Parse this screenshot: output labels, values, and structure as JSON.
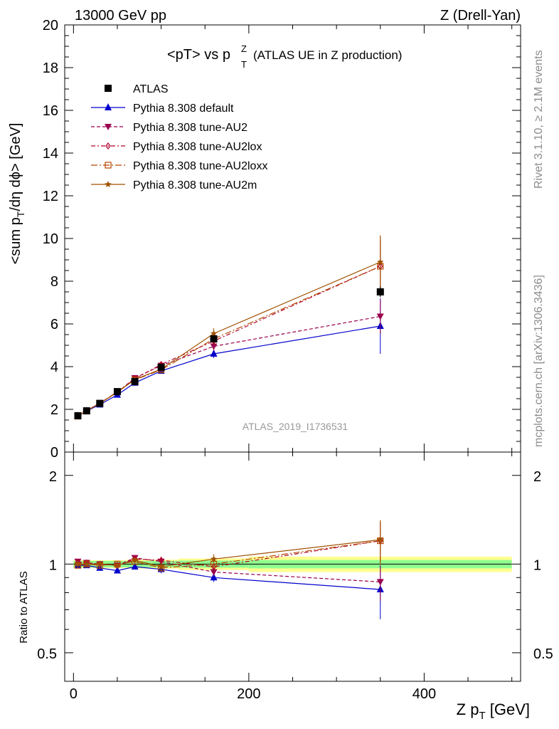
{
  "header": {
    "left": "13000 GeV pp",
    "right": "Z (Drell-Yan)"
  },
  "title": {
    "main": "<pT> vs p",
    "sup": "Z",
    "sub": "T",
    "note": "(ATLAS UE in Z production)"
  },
  "side_labels": {
    "rivet": "Rivet 3.1.10, ≥ 2.1M events",
    "mcplots": "mcplots.cern.ch [arXiv:1306.3436]"
  },
  "analysis_label": "ATLAS_2019_I1736531",
  "colors": {
    "data": "#000000",
    "default": "#0000cc",
    "AU2": "#99004d",
    "AU2lox": "#b3002b",
    "AU2loxx": "#b34700",
    "AU2m": "#a05000",
    "band_inner": "#90ff90",
    "band_outer": "#ffff90"
  },
  "chart_data": [
    {
      "type": "line",
      "panel": "main",
      "xlabel": "Z p_T [GeV]",
      "ylabel": "<sum p_T/dη dϕ> [GeV]",
      "xlim": [
        -10,
        510
      ],
      "ylim": [
        0,
        20
      ],
      "yticks": [
        0,
        2,
        4,
        6,
        8,
        10,
        12,
        14,
        16,
        18,
        20
      ],
      "x": [
        5,
        15,
        30,
        50,
        70,
        100,
        160,
        350
      ],
      "legend_position": "top-left",
      "series": [
        {
          "name": "ATLAS",
          "key": "data",
          "marker": "square-filled",
          "dash": "none",
          "values": [
            1.7,
            1.93,
            2.28,
            2.83,
            3.3,
            3.97,
            5.3,
            7.5
          ],
          "errors": [
            0.05,
            0.05,
            0.06,
            0.07,
            0.09,
            0.1,
            0.15,
            0.25
          ]
        },
        {
          "name": "Pythia 8.308 default",
          "key": "default",
          "marker": "triangle-up",
          "dash": "solid",
          "values": [
            1.68,
            1.92,
            2.22,
            2.68,
            3.24,
            3.8,
            4.6,
            5.9
          ],
          "errors": [
            0.03,
            0.03,
            0.05,
            0.06,
            0.08,
            0.11,
            0.2,
            1.3
          ]
        },
        {
          "name": "Pythia 8.308 tune-AU2",
          "key": "AU2",
          "marker": "triangle-down",
          "dash": "dashed",
          "values": [
            1.73,
            1.95,
            2.28,
            2.8,
            3.47,
            4.05,
            4.95,
            6.35
          ],
          "errors": [
            0.03,
            0.03,
            0.05,
            0.06,
            0.08,
            0.11,
            0.2,
            0.8
          ]
        },
        {
          "name": "Pythia 8.308 tune-AU2lox",
          "key": "AU2lox",
          "marker": "diamond-open",
          "dash": "dashdot",
          "values": [
            1.71,
            1.95,
            2.29,
            2.81,
            3.43,
            4.1,
            5.2,
            8.7
          ],
          "errors": [
            0.03,
            0.03,
            0.05,
            0.06,
            0.08,
            0.11,
            0.2,
            1.2
          ]
        },
        {
          "name": "Pythia 8.308 tune-AU2loxx",
          "key": "AU2loxx",
          "marker": "square-open",
          "dash": "longdashdot",
          "values": [
            1.68,
            1.93,
            2.27,
            2.83,
            3.38,
            3.85,
            5.3,
            8.7
          ],
          "errors": [
            0.03,
            0.03,
            0.05,
            0.06,
            0.08,
            0.11,
            0.2,
            1.4
          ]
        },
        {
          "name": "Pythia 8.308 tune-AU2m",
          "key": "AU2m",
          "marker": "star",
          "dash": "solid",
          "values": [
            1.69,
            1.94,
            2.28,
            2.8,
            3.4,
            3.88,
            5.55,
            8.9
          ],
          "errors": [
            0.03,
            0.03,
            0.05,
            0.06,
            0.08,
            0.11,
            0.25,
            1.25
          ]
        }
      ]
    },
    {
      "type": "line",
      "panel": "ratio",
      "xlabel": "Z p_T [GeV]",
      "ylabel": "Ratio to ATLAS",
      "xlim": [
        -10,
        510
      ],
      "ylim": [
        0.4,
        2.4
      ],
      "scale": "log",
      "yticks": [
        0.5,
        1,
        2
      ],
      "xticks": [
        0,
        200,
        400
      ],
      "x": [
        5,
        15,
        30,
        50,
        70,
        100,
        160,
        350
      ],
      "band": {
        "x": [
          0,
          10,
          20,
          40,
          60,
          80,
          120,
          200,
          500
        ],
        "inner": [
          0.025,
          0.025,
          0.025,
          0.025,
          0.025,
          0.025,
          0.028,
          0.033
        ],
        "outer": [
          0.03,
          0.03,
          0.03,
          0.03,
          0.035,
          0.035,
          0.045,
          0.06
        ]
      },
      "series": [
        {
          "name": "Pythia 8.308 default",
          "key": "default",
          "values": [
            0.99,
            0.99,
            0.97,
            0.95,
            0.98,
            0.96,
            0.9,
            0.82
          ],
          "errors": [
            0.02,
            0.02,
            0.02,
            0.02,
            0.02,
            0.03,
            0.03,
            0.17
          ]
        },
        {
          "name": "Pythia 8.308 tune-AU2",
          "key": "AU2",
          "values": [
            1.02,
            1.01,
            1.0,
            0.99,
            1.05,
            1.02,
            0.94,
            0.87
          ],
          "errors": [
            0.02,
            0.02,
            0.02,
            0.02,
            0.02,
            0.03,
            0.03,
            0.12
          ]
        },
        {
          "name": "Pythia 8.308 tune-AU2lox",
          "key": "AU2lox",
          "values": [
            1.01,
            1.01,
            1.0,
            0.99,
            1.04,
            1.03,
            0.98,
            1.2
          ],
          "errors": [
            0.02,
            0.02,
            0.02,
            0.02,
            0.02,
            0.03,
            0.03,
            0.18
          ]
        },
        {
          "name": "Pythia 8.308 tune-AU2loxx",
          "key": "AU2loxx",
          "values": [
            0.99,
            1.0,
            0.99,
            1.0,
            1.02,
            0.97,
            1.0,
            1.2
          ],
          "errors": [
            0.02,
            0.02,
            0.02,
            0.02,
            0.02,
            0.03,
            0.03,
            0.2
          ]
        },
        {
          "name": "Pythia 8.308 tune-AU2m",
          "key": "AU2m",
          "values": [
            1.0,
            1.0,
            1.0,
            0.99,
            1.03,
            0.98,
            1.04,
            1.21
          ],
          "errors": [
            0.02,
            0.02,
            0.02,
            0.02,
            0.02,
            0.03,
            0.04,
            0.2
          ]
        }
      ]
    }
  ]
}
